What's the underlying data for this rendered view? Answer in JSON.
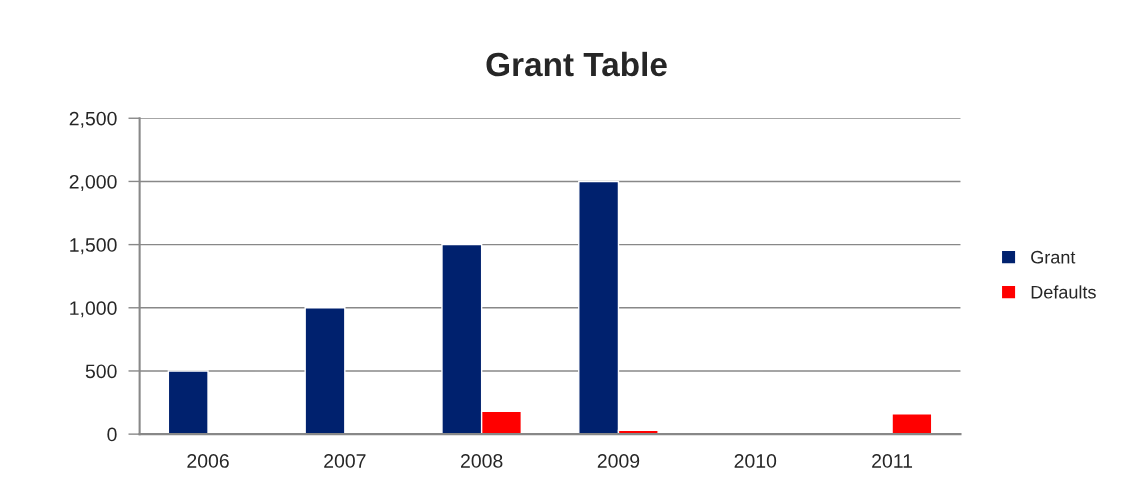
{
  "chart_data": {
    "type": "bar",
    "title": "Grant Table",
    "categories": [
      "2006",
      "2007",
      "2008",
      "2009",
      "2010",
      "2011"
    ],
    "series": [
      {
        "name": "Grant",
        "color": "#00216e",
        "values": [
          500,
          1000,
          1500,
          2000,
          null,
          null
        ]
      },
      {
        "name": "Defaults",
        "color": "#ff0000",
        "values": [
          null,
          null,
          180,
          30,
          null,
          160
        ]
      }
    ],
    "ylim": [
      0,
      2500
    ],
    "yticks": [
      0,
      500,
      {
        "value": 1000,
        "label": "1,000"
      },
      {
        "value": 1500,
        "label": "1,500"
      },
      {
        "value": 2000,
        "label": "2,000"
      },
      {
        "value": 2500,
        "label": "2,500"
      }
    ],
    "grid": "y",
    "legend": "right"
  }
}
